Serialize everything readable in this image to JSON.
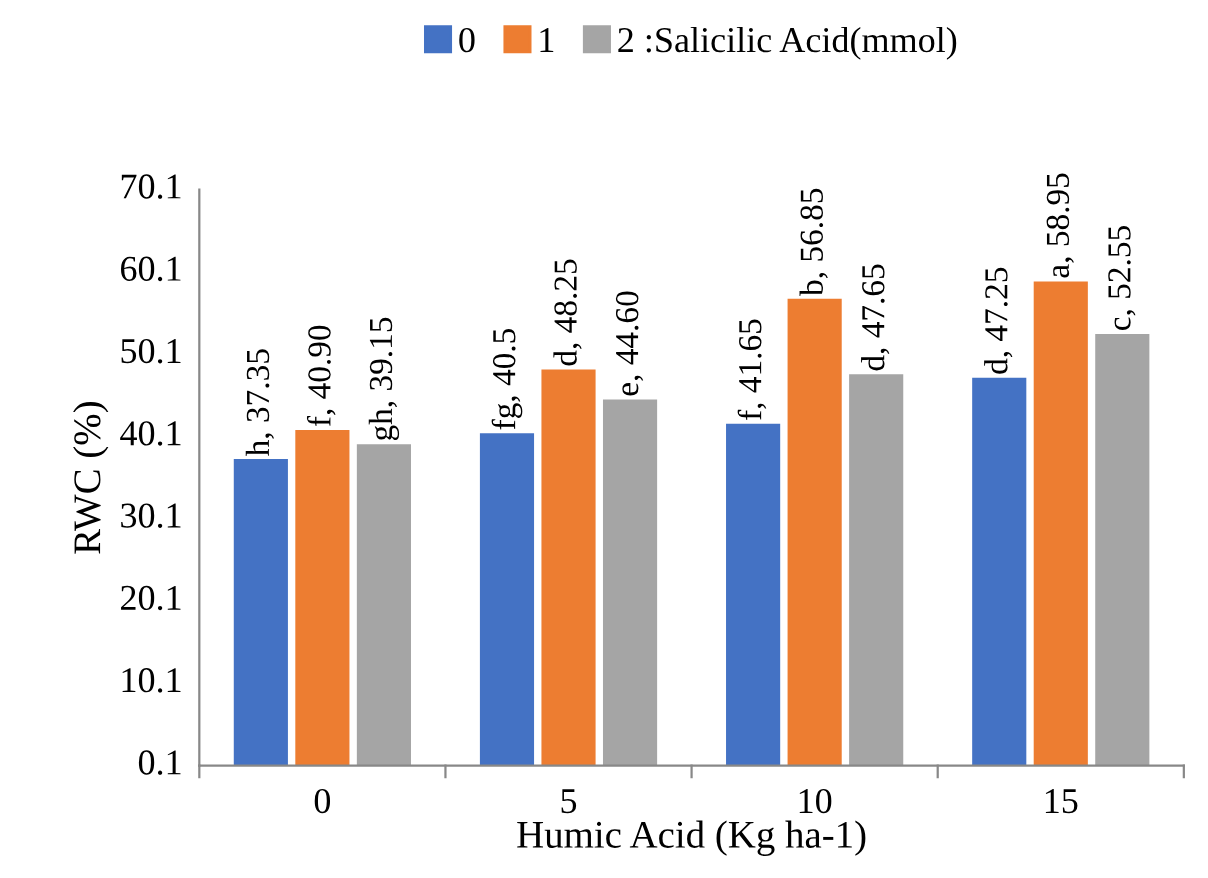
{
  "chart_data": {
    "type": "bar",
    "xlabel": "Humic Acid (Kg ha-1)",
    "ylabel": "RWC (%)",
    "categories": [
      "0",
      "5",
      "10",
      "15"
    ],
    "series": [
      {
        "name": "0",
        "color": "#4472c4",
        "values": [
          37.35,
          40.5,
          41.65,
          47.25
        ],
        "value_labels": [
          "h, 37.35",
          "fg, 40.5",
          "f, 41.65",
          "d, 47.25"
        ]
      },
      {
        "name": "1",
        "color": "#ed7d31",
        "values": [
          40.9,
          48.25,
          56.85,
          58.95
        ],
        "value_labels": [
          "f, 40.90",
          "d, 48.25",
          "b, 56.85",
          "a, 58.95"
        ]
      },
      {
        "name": "2 :Salicilic Acid(mmol)",
        "color": "#a5a5a5",
        "values": [
          39.15,
          44.6,
          47.65,
          52.55
        ],
        "value_labels": [
          "gh, 39.15",
          "e, 44.60",
          "d, 47.65",
          "c, 52.55"
        ]
      }
    ],
    "ylim": [
      0.1,
      70.1
    ],
    "yticks": [
      0.1,
      10.1,
      20.1,
      30.1,
      40.1,
      50.1,
      60.1,
      70.1
    ],
    "grid": false,
    "legend": "top"
  }
}
